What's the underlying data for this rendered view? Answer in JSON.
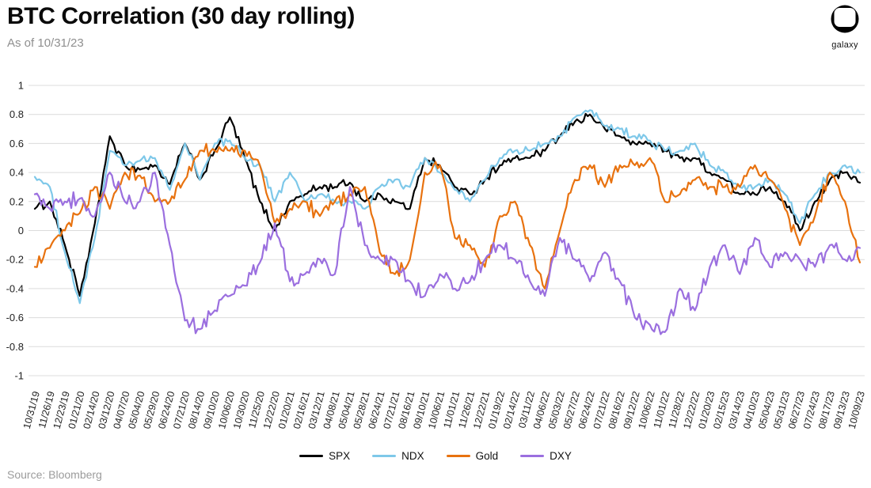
{
  "header": {
    "title": "BTC Correlation (30 day rolling)",
    "as_of": "As of 10/31/23"
  },
  "logo": {
    "label": "galaxy"
  },
  "footer": {
    "source": "Source: Bloomberg"
  },
  "chart_data": {
    "type": "line",
    "title": "BTC Correlation (30 day rolling)",
    "xlabel": "",
    "ylabel": "",
    "ylim": [
      -1,
      1
    ],
    "ytick_labels": [
      "1",
      "0.8",
      "0.6",
      "0.4",
      "0.2",
      "0",
      "-0.2",
      "-0.4",
      "-0.6",
      "-0.8",
      "-1"
    ],
    "ytick_values": [
      1,
      0.8,
      0.6,
      0.4,
      0.2,
      0,
      -0.2,
      -0.4,
      -0.6,
      -0.8,
      -1
    ],
    "grid": "horizontal",
    "grid_color": "#dcdcdc",
    "legend_position": "bottom",
    "categories": [
      "10/31/19",
      "11/26/19",
      "12/23/19",
      "01/21/20",
      "02/14/20",
      "03/12/20",
      "04/07/20",
      "05/04/20",
      "05/29/20",
      "06/24/20",
      "07/21/20",
      "08/14/20",
      "09/10/20",
      "10/06/20",
      "10/30/20",
      "11/25/20",
      "12/22/20",
      "01/20/21",
      "02/16/21",
      "03/12/21",
      "04/08/21",
      "05/04/21",
      "05/28/21",
      "06/24/21",
      "07/21/21",
      "08/16/21",
      "09/10/21",
      "10/06/21",
      "11/01/21",
      "11/26/21",
      "12/22/21",
      "01/19/22",
      "02/14/22",
      "03/11/22",
      "04/06/22",
      "05/03/22",
      "05/27/22",
      "06/24/22",
      "07/21/22",
      "08/16/22",
      "09/12/22",
      "10/06/22",
      "11/01/22",
      "11/28/22",
      "12/22/22",
      "01/20/23",
      "02/15/23",
      "03/14/23",
      "04/10/23",
      "05/04/23",
      "05/31/23",
      "06/27/23",
      "07/24/23",
      "08/17/23",
      "09/13/23",
      "10/09/23"
    ],
    "series": [
      {
        "name": "SPX",
        "color": "#000000",
        "values": [
          0.15,
          0.2,
          -0.1,
          -0.45,
          0.05,
          0.65,
          0.45,
          0.42,
          0.45,
          0.32,
          0.6,
          0.35,
          0.55,
          0.78,
          0.5,
          0.2,
          0.0,
          0.2,
          0.25,
          0.3,
          0.3,
          0.33,
          0.2,
          0.25,
          0.2,
          0.15,
          0.5,
          0.45,
          0.3,
          0.25,
          0.35,
          0.45,
          0.5,
          0.5,
          0.55,
          0.65,
          0.75,
          0.8,
          0.7,
          0.65,
          0.6,
          0.6,
          0.55,
          0.5,
          0.5,
          0.4,
          0.35,
          0.25,
          0.25,
          0.3,
          0.2,
          0.0,
          0.2,
          0.35,
          0.4,
          0.33
        ]
      },
      {
        "name": "NDX",
        "color": "#7EC8E9",
        "values": [
          0.37,
          0.3,
          -0.15,
          -0.5,
          -0.05,
          0.55,
          0.45,
          0.48,
          0.5,
          0.28,
          0.6,
          0.35,
          0.6,
          0.62,
          0.5,
          0.45,
          0.2,
          0.4,
          0.2,
          0.25,
          0.2,
          0.2,
          0.15,
          0.3,
          0.35,
          0.3,
          0.5,
          0.4,
          0.28,
          0.2,
          0.35,
          0.5,
          0.55,
          0.55,
          0.6,
          0.65,
          0.78,
          0.83,
          0.72,
          0.7,
          0.65,
          0.62,
          0.55,
          0.55,
          0.6,
          0.45,
          0.4,
          0.3,
          0.3,
          0.35,
          0.25,
          0.05,
          0.25,
          0.4,
          0.45,
          0.4
        ]
      },
      {
        "name": "Gold",
        "color": "#E8720F",
        "values": [
          -0.25,
          -0.12,
          0.0,
          0.12,
          0.3,
          0.15,
          0.4,
          0.38,
          0.2,
          0.2,
          0.35,
          0.55,
          0.55,
          0.55,
          0.55,
          0.45,
          0.05,
          0.15,
          0.2,
          0.1,
          0.2,
          0.25,
          0.3,
          -0.15,
          -0.3,
          -0.2,
          0.4,
          0.45,
          -0.05,
          -0.1,
          -0.25,
          0.1,
          0.2,
          -0.1,
          -0.4,
          0.0,
          0.35,
          0.45,
          0.3,
          0.45,
          0.45,
          0.5,
          0.2,
          0.25,
          0.35,
          0.3,
          0.3,
          0.3,
          0.45,
          0.35,
          0.15,
          -0.1,
          0.1,
          0.4,
          0.2,
          -0.22
        ]
      },
      {
        "name": "DXY",
        "color": "#9B6FDF",
        "values": [
          0.25,
          0.15,
          0.2,
          0.22,
          0.1,
          0.4,
          0.2,
          0.2,
          0.4,
          -0.1,
          -0.62,
          -0.68,
          -0.55,
          -0.45,
          -0.38,
          -0.22,
          0.05,
          -0.35,
          -0.3,
          -0.2,
          -0.3,
          0.3,
          -0.1,
          -0.2,
          -0.2,
          -0.35,
          -0.45,
          -0.3,
          -0.4,
          -0.35,
          -0.2,
          -0.1,
          -0.2,
          -0.35,
          -0.45,
          -0.05,
          -0.2,
          -0.35,
          -0.15,
          -0.35,
          -0.6,
          -0.65,
          -0.7,
          -0.4,
          -0.55,
          -0.25,
          -0.1,
          -0.3,
          -0.05,
          -0.25,
          -0.15,
          -0.2,
          -0.25,
          -0.1,
          -0.2,
          -0.12
        ]
      }
    ]
  }
}
